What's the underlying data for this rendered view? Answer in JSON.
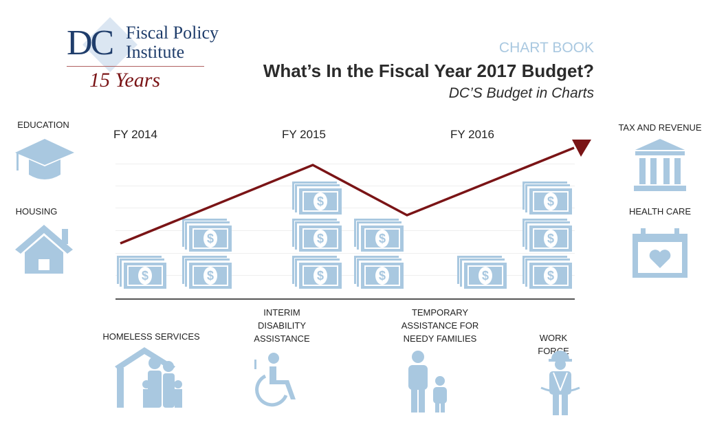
{
  "logo": {
    "text_dc": "DC",
    "text_line1": "Fiscal Policy",
    "text_line2": "Institute",
    "text_years": "15 Years"
  },
  "header": {
    "kicker": "CHART BOOK",
    "title": "What’s In the Fiscal Year 2017 Budget?",
    "subtitle": "DC’S Budget in Charts"
  },
  "years": [
    "FY 2014",
    "FY 2015",
    "FY 2016"
  ],
  "left_icons": [
    {
      "label": "EDUCATION",
      "icon": "graduation-cap-icon"
    },
    {
      "label": "HOUSING",
      "icon": "house-icon"
    }
  ],
  "right_icons": [
    {
      "label": "TAX AND REVENUE",
      "icon": "government-building-icon"
    },
    {
      "label": "HEALTH CARE",
      "icon": "calendar-heart-icon"
    }
  ],
  "bottom_icons": [
    {
      "label": "HOMELESS SERVICES",
      "icon": "family-house-icon"
    },
    {
      "label": "INTERIM DISABILITY ASSISTANCE",
      "icon": "wheelchair-icon"
    },
    {
      "label": "TEMPORARY ASSISTANCE FOR NEEDY FAMILIES",
      "icon": "parent-child-icon"
    },
    {
      "label": "WORK FORCE",
      "icon": "worker-icon"
    }
  ],
  "money_stacks": [
    1,
    2,
    3,
    2,
    1,
    3
  ],
  "colors": {
    "accent_blue": "#a9c8e0",
    "trend_line": "#7a1416",
    "logo_blue": "#1f3d6b"
  }
}
